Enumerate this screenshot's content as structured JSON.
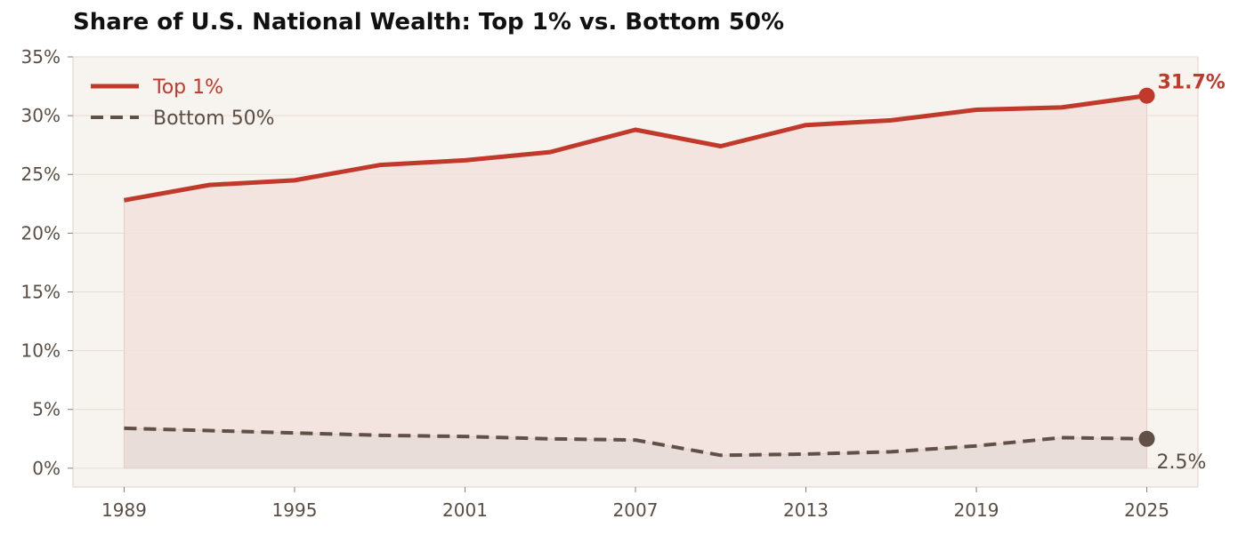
{
  "chart_data": {
    "type": "line",
    "title": "Share of U.S. National Wealth: Top 1% vs. Bottom 50%",
    "xlabel": "",
    "ylabel": "",
    "x": [
      1989,
      1992,
      1995,
      1998,
      2001,
      2004,
      2007,
      2010,
      2013,
      2016,
      2019,
      2022,
      2025
    ],
    "xticks": [
      "1989",
      "1995",
      "2001",
      "2007",
      "2013",
      "2019",
      "2025"
    ],
    "yticks": [
      "0%",
      "5%",
      "10%",
      "15%",
      "20%",
      "25%",
      "30%",
      "35%"
    ],
    "xlim": [
      1987.2,
      2026.8
    ],
    "ylim": [
      -1.6,
      35
    ],
    "grid": true,
    "legend_position": "top-left",
    "series": [
      {
        "name": "Top 1%",
        "values": [
          22.8,
          24.1,
          24.5,
          25.8,
          26.2,
          26.9,
          28.8,
          27.4,
          29.2,
          29.6,
          30.5,
          30.7,
          31.7
        ],
        "color": "#c0392b",
        "style": "solid",
        "end_label": "31.7%"
      },
      {
        "name": "Bottom 50%",
        "values": [
          3.4,
          3.2,
          3.0,
          2.8,
          2.7,
          2.5,
          2.4,
          1.1,
          1.2,
          1.4,
          1.9,
          2.6,
          2.5
        ],
        "color": "#605048",
        "style": "dashed",
        "end_label": "2.5%"
      }
    ],
    "colors": {
      "plot_background": "#f7f3ee",
      "grid": "#e8ddd6",
      "top_fill": "#f2e0dd",
      "bottom_fill": "#e7dcd7"
    }
  }
}
